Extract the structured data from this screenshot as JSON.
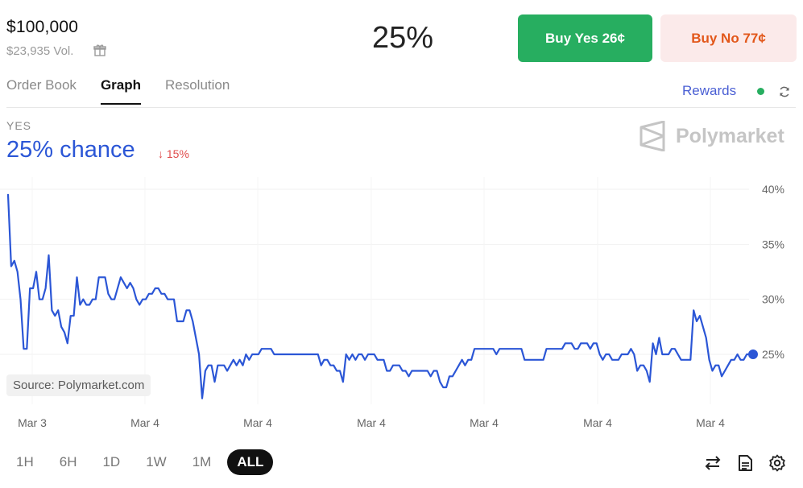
{
  "market": {
    "title_price": "$100,000",
    "volume": "$23,935 Vol.",
    "main_percent": "25%"
  },
  "buttons": {
    "yes_label": "Buy Yes 26¢",
    "no_label": "Buy No 77¢"
  },
  "tabs": [
    {
      "label": "Order Book",
      "active": false
    },
    {
      "label": "Graph",
      "active": true
    },
    {
      "label": "Resolution",
      "active": false
    }
  ],
  "rewards": {
    "label": "Rewards",
    "status_color": "#27ae60"
  },
  "outcome": {
    "label": "YES",
    "chance": "25% chance",
    "change": "↓ 15%"
  },
  "brand": {
    "name": "Polymarket"
  },
  "source_label": "Source: Polymarket.com",
  "timeframes": [
    {
      "label": "1H",
      "active": false
    },
    {
      "label": "6H",
      "active": false
    },
    {
      "label": "1D",
      "active": false
    },
    {
      "label": "1W",
      "active": false
    },
    {
      "label": "1M",
      "active": false
    },
    {
      "label": "ALL",
      "active": true
    }
  ],
  "icons": [
    "gift-icon",
    "refresh-icon",
    "swap-icon",
    "document-icon",
    "settings-icon"
  ],
  "colors": {
    "line": "#2b56d6",
    "yes": "#27ae60",
    "no": "#e2571a",
    "negative": "#e04c4c"
  },
  "chart_data": {
    "type": "line",
    "ylim": [
      20,
      42
    ],
    "y_ticks": [
      40,
      35,
      30,
      25
    ],
    "y_tick_labels": [
      "40%",
      "35%",
      "30%",
      "25%"
    ],
    "x_tick_labels": [
      "Mar 3",
      "Mar 4",
      "Mar 4",
      "Mar 4",
      "Mar 4",
      "Mar 4",
      "Mar 4"
    ],
    "grid": true,
    "series": [
      {
        "values": [
          39.5,
          33,
          33.5,
          32.5,
          30,
          25.5,
          25.5,
          31,
          31,
          32.5,
          30,
          30,
          31,
          34,
          29,
          28.5,
          29,
          27.5,
          27,
          26,
          28.5,
          28.5,
          32,
          29.5,
          30,
          29.5,
          29.5,
          30,
          30,
          32,
          32,
          32,
          30.5,
          30,
          30,
          31,
          32,
          31.5,
          31,
          31.5,
          31,
          30,
          29.5,
          30,
          30,
          30.5,
          30.5,
          31,
          31,
          30.5,
          30.5,
          30,
          30,
          30,
          28,
          28,
          28,
          29,
          29,
          28,
          26.5,
          25,
          21,
          23.5,
          24,
          24,
          22.5,
          24,
          24,
          24,
          23.5,
          24,
          24.5,
          24,
          24.5,
          24,
          25,
          24.5,
          25,
          25,
          25,
          25.5,
          25.5,
          25.5,
          25.5,
          25,
          25,
          25,
          25,
          25,
          25,
          25,
          25,
          25,
          25,
          25,
          25,
          25,
          25,
          25,
          24,
          24.5,
          24.5,
          24,
          24,
          23.5,
          23.5,
          22.5,
          25,
          24.5,
          25,
          24.5,
          25,
          25,
          24.5,
          25,
          25,
          25,
          24.5,
          24.5,
          24.5,
          23.5,
          23.5,
          24,
          24,
          24,
          23.5,
          23.5,
          23,
          23.5,
          23.5,
          23.5,
          23.5,
          23.5,
          23.5,
          23,
          23.5,
          23.5,
          22.5,
          22,
          22,
          23,
          23,
          23.5,
          24,
          24.5,
          24,
          24.5,
          24.5,
          25.5,
          25.5,
          25.5,
          25.5,
          25.5,
          25.5,
          25.5,
          25,
          25.5,
          25.5,
          25.5,
          25.5,
          25.5,
          25.5,
          25.5,
          25.5,
          24.5,
          24.5,
          24.5,
          24.5,
          24.5,
          24.5,
          24.5,
          25.5,
          25.5,
          25.5,
          25.5,
          25.5,
          25.5,
          26,
          26,
          26,
          25.5,
          25.5,
          26,
          26,
          26,
          25.5,
          26,
          26,
          25,
          24.5,
          25,
          25,
          24.5,
          24.5,
          24.5,
          25,
          25,
          25,
          25.5,
          25,
          23.5,
          24,
          24,
          23.5,
          22.5,
          26,
          25,
          26.5,
          25,
          25,
          25,
          25.5,
          25.5,
          25,
          24.5,
          24.5,
          24.5,
          24.5,
          29,
          28,
          28.5,
          27.5,
          26.5,
          24.5,
          23.5,
          24,
          24,
          23,
          23.5,
          24,
          24.5,
          24.5,
          25,
          24.5,
          24.5,
          25,
          25,
          25
        ]
      }
    ]
  }
}
